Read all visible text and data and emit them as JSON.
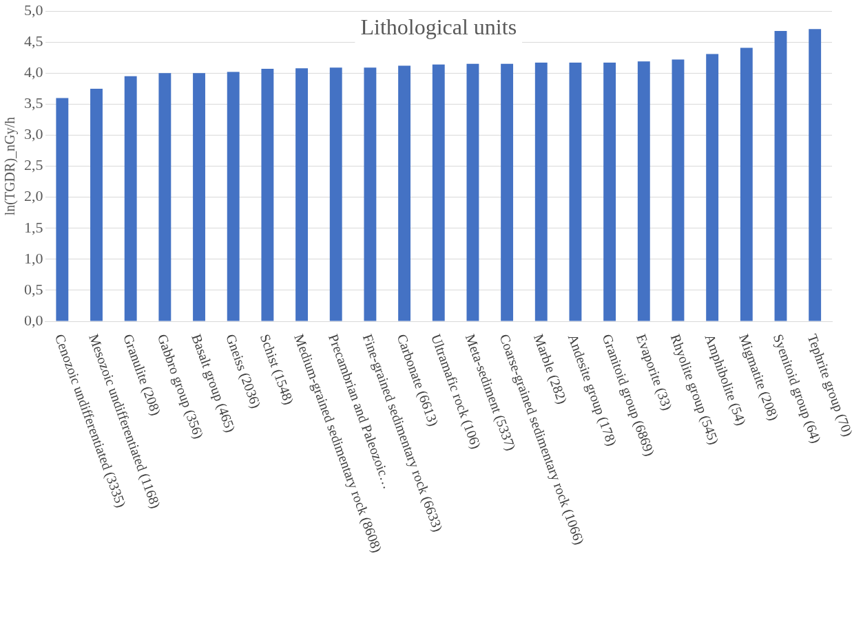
{
  "chart_data": {
    "type": "bar",
    "title": "Lithological units",
    "ylabel": "ln(TGDR)_nGy/h",
    "categories": [
      "Cenozoic undifferentiated (3335)",
      "Mesozoic undifferentiated (1168)",
      "Granulite (208)",
      "Gabbro group (356)",
      "Basalt group (465)",
      "Gneiss (2036)",
      "Schist (1548)",
      "Medium-grained sedimentary rock (8608)",
      "Precambrian and Paleozoic…",
      "Fine-grained sedimentary rock (6633)",
      "Carbonate (6613)",
      "Ultramafic rock (106)",
      "Meta-sediment (5337)",
      "Coarse-grained sedimentary rock (1066)",
      "Marble (282)",
      "Andesite group (178)",
      "Granitoid group (6869)",
      "Evaporite (33)",
      "Rhyolite group (545)",
      "Amphibolite (54)",
      "Migmatite (208)",
      "Syenitoid group (64)",
      "Tephrite group (70)"
    ],
    "values": [
      3.6,
      3.75,
      3.95,
      4.0,
      4.0,
      4.02,
      4.07,
      4.08,
      4.09,
      4.09,
      4.12,
      4.14,
      4.15,
      4.15,
      4.17,
      4.17,
      4.17,
      4.19,
      4.22,
      4.31,
      4.41,
      4.68,
      4.71
    ],
    "color": "#4472c4",
    "ylim": [
      0,
      5
    ],
    "yticks": [
      {
        "value": 0,
        "label": "0,0"
      },
      {
        "value": 0.5,
        "label": "0,5"
      },
      {
        "value": 1,
        "label": "1,0"
      },
      {
        "value": 1.5,
        "label": "1,5"
      },
      {
        "value": 2,
        "label": "2,0"
      },
      {
        "value": 2.5,
        "label": "2,5"
      },
      {
        "value": 3,
        "label": "3,0"
      },
      {
        "value": 3.5,
        "label": "3,5"
      },
      {
        "value": 4,
        "label": "4,0"
      },
      {
        "value": 4.5,
        "label": "4,5"
      },
      {
        "value": 5,
        "label": "5,0"
      }
    ],
    "grid": "y",
    "legend": false
  }
}
